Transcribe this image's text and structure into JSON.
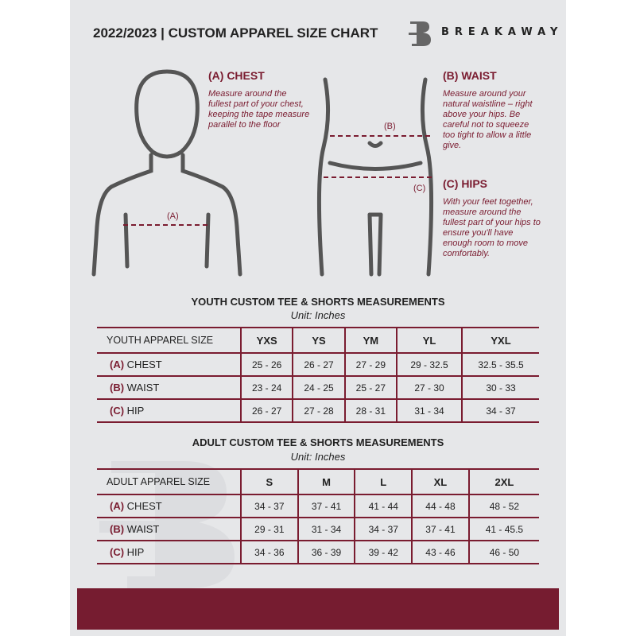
{
  "header": {
    "title": "2022/2023  |  CUSTOM APPAREL SIZE CHART",
    "brand": "BREAKAWAY"
  },
  "measures": {
    "chest": {
      "heading": "(A) CHEST",
      "text": "Measure around the fullest part of your chest, keeping the tape measure parallel to the floor",
      "marker": "(A)"
    },
    "waist": {
      "heading": "(B) WAIST",
      "text": "Measure around your natural waistline – right above your hips. Be careful not to squeeze too tight to allow a little give.",
      "marker": "(B)"
    },
    "hips": {
      "heading": "(C) HIPS",
      "text": "With your feet together, measure around the fullest part of your hips to ensure you'll have enough room to move comfortably.",
      "marker": "(C)"
    }
  },
  "youth": {
    "title": "YOUTH CUSTOM TEE & SHORTS MEASUREMENTS",
    "unit": "Unit: Inches",
    "header": "YOUTH APPAREL SIZE",
    "sizes": [
      "YXS",
      "YS",
      "YM",
      "YL",
      "YXL"
    ],
    "rows": [
      {
        "letter": "(A)",
        "label": "CHEST",
        "values": [
          "25 - 26",
          "26 - 27",
          "27 - 29",
          "29 - 32.5",
          "32.5 - 35.5"
        ]
      },
      {
        "letter": "(B)",
        "label": "WAIST",
        "values": [
          "23 - 24",
          "24 - 25",
          "25 - 27",
          "27 - 30",
          "30 - 33"
        ]
      },
      {
        "letter": "(C)",
        "label": "HIP",
        "values": [
          "26 - 27",
          "27 - 28",
          "28 - 31",
          "31 - 34",
          "34 - 37"
        ]
      }
    ]
  },
  "adult": {
    "title": "ADULT CUSTOM TEE & SHORTS MEASUREMENTS",
    "unit": "Unit: Inches",
    "header": "ADULT APPAREL SIZE",
    "sizes": [
      "S",
      "M",
      "L",
      "XL",
      "2XL"
    ],
    "rows": [
      {
        "letter": "(A)",
        "label": "CHEST",
        "values": [
          "34 - 37",
          "37 - 41",
          "41 - 44",
          "44 - 48",
          "48 - 52"
        ]
      },
      {
        "letter": "(B)",
        "label": "WAIST",
        "values": [
          "29 - 31",
          "31 - 34",
          "34 - 37",
          "37 - 41",
          "41 - 45.5"
        ]
      },
      {
        "letter": "(C)",
        "label": "HIP",
        "values": [
          "34 - 36",
          "36 - 39",
          "39 - 42",
          "43 - 46",
          "46 - 50"
        ]
      }
    ]
  },
  "colors": {
    "accent": "#761c30",
    "background": "#e6e7e9"
  }
}
